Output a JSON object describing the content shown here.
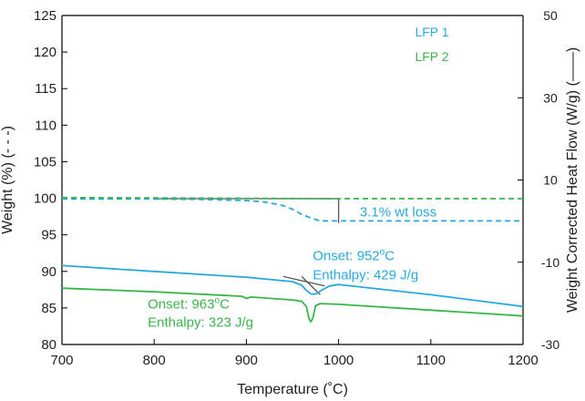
{
  "chart_data": {
    "type": "line",
    "x_axis": {
      "label": "Temperature (˚C)",
      "range": [
        700,
        1200
      ],
      "ticks": [
        700,
        800,
        900,
        1000,
        1100,
        1200
      ]
    },
    "y_left": {
      "label": "Weight (%) (- - -)",
      "range": [
        80,
        125
      ],
      "ticks": [
        80,
        85,
        90,
        95,
        100,
        105,
        110,
        115,
        120,
        125
      ]
    },
    "y_right": {
      "label": "Weight Corrected Heat Flow (W/g) (——)",
      "range": [
        -30,
        50
      ],
      "ticks": [
        -30,
        -10,
        10,
        30,
        50
      ]
    },
    "grid": false,
    "legend": {
      "position": "top-right",
      "entries": [
        {
          "label": "LFP 1",
          "color": "#29a8e0"
        },
        {
          "label": "LFP 2",
          "color": "#3ab54a"
        }
      ]
    },
    "series": [
      {
        "name": "LFP 1",
        "kind": "weight",
        "axis": "left",
        "style": "dashed",
        "color": "#29a8e0",
        "x": [
          700,
          800,
          850,
          900,
          920,
          940,
          950,
          960,
          970,
          980,
          1000,
          1100,
          1200
        ],
        "y": [
          99.9,
          99.9,
          99.85,
          99.7,
          99.5,
          99.0,
          98.5,
          97.8,
          97.3,
          96.9,
          96.9,
          96.9,
          96.9
        ]
      },
      {
        "name": "LFP 2",
        "kind": "weight",
        "axis": "left",
        "style": "dashed",
        "color": "#3ab54a",
        "x": [
          700,
          800,
          900,
          1000,
          1100,
          1200
        ],
        "y": [
          100.1,
          100.05,
          100.0,
          99.95,
          99.95,
          99.95
        ]
      },
      {
        "name": "LFP 1",
        "kind": "heat_flow",
        "axis": "left",
        "style": "solid",
        "color": "#29a8e0",
        "x": [
          700,
          800,
          900,
          950,
          960,
          965,
          970,
          975,
          980,
          990,
          1000,
          1100,
          1200
        ],
        "y": [
          90.8,
          90.0,
          89.2,
          88.6,
          88.1,
          87.4,
          86.9,
          86.9,
          87.3,
          88.0,
          88.2,
          86.8,
          85.2
        ]
      },
      {
        "name": "LFP 2",
        "kind": "heat_flow",
        "axis": "left",
        "style": "solid",
        "color": "#3ab54a",
        "x": [
          700,
          800,
          895,
          900,
          905,
          950,
          960,
          965,
          968,
          970,
          972,
          975,
          980,
          1000,
          1100,
          1200
        ],
        "y": [
          87.7,
          87.2,
          86.6,
          86.3,
          86.5,
          86.1,
          85.9,
          85.2,
          83.5,
          83.1,
          83.6,
          85.3,
          85.6,
          85.5,
          84.7,
          83.9
        ]
      }
    ],
    "annotations": [
      {
        "text": "3.1% wt loss",
        "color": "#29a8e0",
        "x": 1023,
        "y": 97.5
      },
      {
        "text": "Onset: 952",
        "sup": "o",
        "unit": "C",
        "color": "#29a8e0",
        "x": 972,
        "y": 91.5
      },
      {
        "text": "Enthalpy: 429 J/g",
        "color": "#29a8e0",
        "x": 972,
        "y": 88.9
      },
      {
        "text": "Onset: 963",
        "sup": "o",
        "unit": "C",
        "color": "#3ab54a",
        "x": 793,
        "y": 84.9
      },
      {
        "text": "Enthalpy: 323 J/g",
        "color": "#3ab54a",
        "x": 793,
        "y": 82.4
      }
    ],
    "helper_lines": [
      {
        "color": "#555555",
        "x": [
          800,
          1000,
          1000
        ],
        "y": [
          99.95,
          99.95,
          96.6
        ]
      },
      {
        "color": "#555555",
        "x": [
          940,
          985
        ],
        "y": [
          89.3,
          88.0
        ]
      },
      {
        "color": "#555555",
        "x": [
          960,
          980
        ],
        "y": [
          89.3,
          86.8
        ]
      }
    ]
  }
}
